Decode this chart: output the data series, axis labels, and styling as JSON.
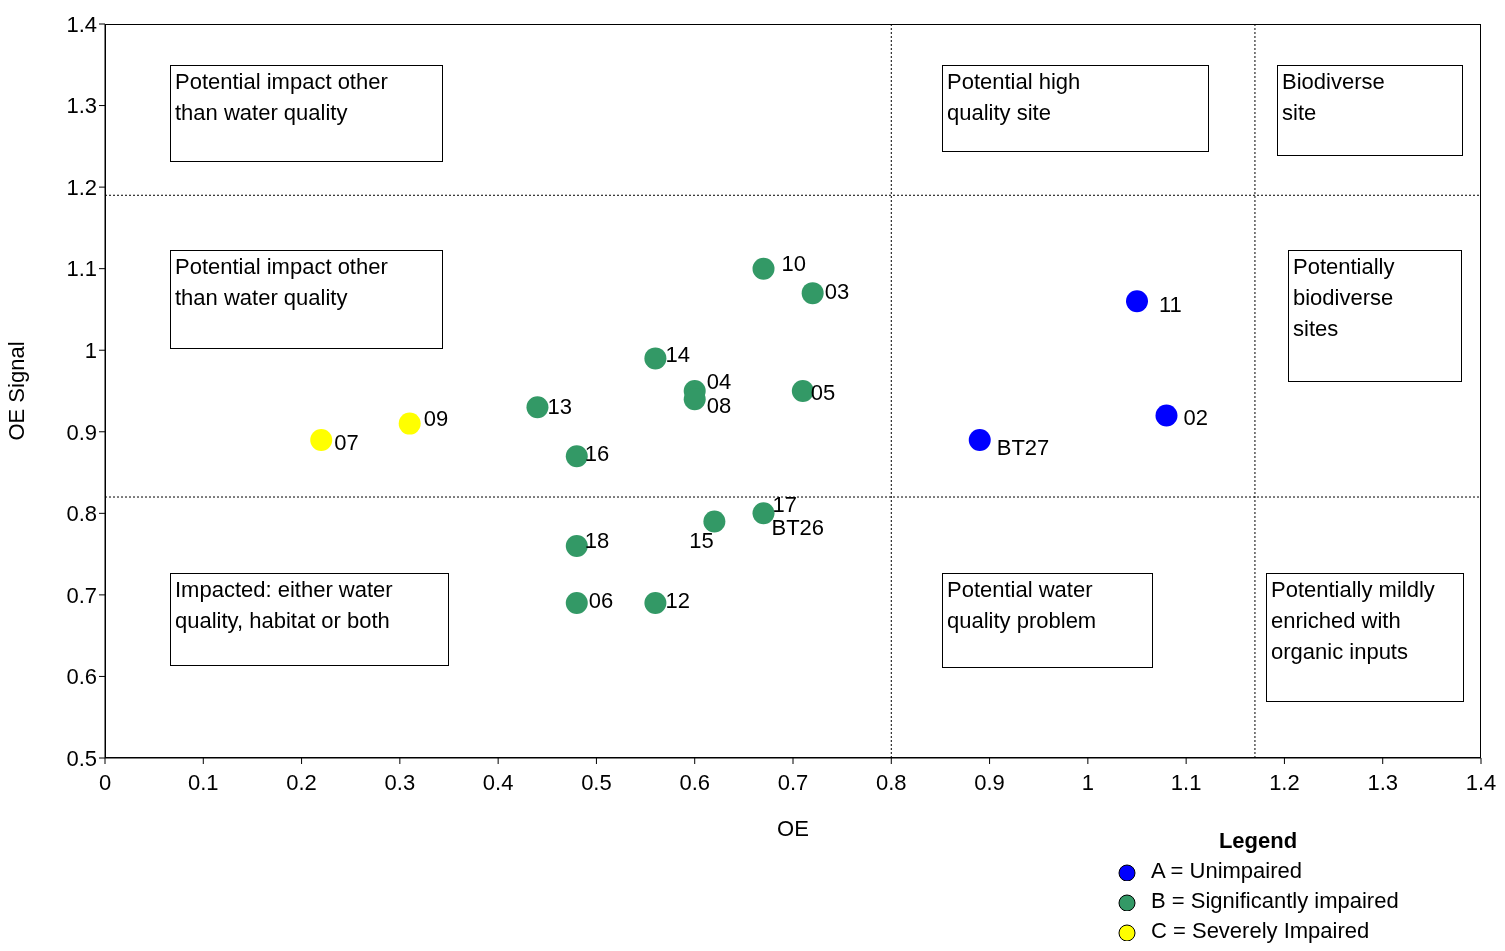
{
  "chart_data": {
    "type": "scatter",
    "xlabel": "OE",
    "ylabel": "OE Signal",
    "legend_title": "Legend",
    "legend": "bottom right",
    "marker": "circle",
    "grid": false,
    "xlim": [
      0,
      1.4
    ],
    "ylim": [
      0.5,
      1.4
    ],
    "xticks": [
      0,
      0.1,
      0.2,
      0.3,
      0.4,
      0.5,
      0.6,
      0.7,
      0.8,
      0.9,
      1,
      1.1,
      1.2,
      1.3,
      1.4
    ],
    "yticks": [
      0.5,
      0.6,
      0.7,
      0.8,
      0.9,
      1,
      1.1,
      1.2,
      1.3,
      1.4
    ],
    "series": [
      {
        "name": "A = Unimpaired",
        "color": "#0000ff",
        "x": [
          0.89,
          1.05,
          1.08
        ],
        "values": [
          0.89,
          1.06,
          0.92
        ]
      },
      {
        "name": "B = Significantly impaired",
        "color": "#339966",
        "x": [
          0.44,
          0.48,
          0.56,
          0.6,
          0.6,
          0.67,
          0.72,
          0.71,
          0.48,
          0.48,
          0.56,
          0.62,
          0.67
        ],
        "values": [
          0.93,
          0.87,
          0.99,
          0.95,
          0.94,
          1.1,
          1.07,
          0.95,
          0.76,
          0.69,
          0.69,
          0.79,
          0.8
        ]
      },
      {
        "name": "C = Severely Impaired",
        "color": "#ffff00",
        "x": [
          0.22,
          0.31
        ],
        "values": [
          0.89,
          0.91
        ]
      }
    ],
    "ref_lines": [
      {
        "axis": "x",
        "value": 0.8,
        "line_style": "dotted"
      },
      {
        "axis": "x",
        "value": 1.17,
        "line_style": "dotted"
      },
      {
        "axis": "y",
        "value": 1.19,
        "line_style": "dotted"
      },
      {
        "axis": "y",
        "value": 0.82,
        "line_style": "dotted"
      }
    ],
    "annotations": [
      {
        "text": "07",
        "x": 0.22,
        "y": 0.89
      },
      {
        "text": "09",
        "x": 0.31,
        "y": 0.91
      },
      {
        "text": "13",
        "x": 0.44,
        "y": 0.93
      },
      {
        "text": "16",
        "x": 0.48,
        "y": 0.87
      },
      {
        "text": "14",
        "x": 0.56,
        "y": 0.99
      },
      {
        "text": "04",
        "x": 0.6,
        "y": 0.95
      },
      {
        "text": "08",
        "x": 0.6,
        "y": 0.94
      },
      {
        "text": "10",
        "x": 0.67,
        "y": 1.1
      },
      {
        "text": "03",
        "x": 0.72,
        "y": 1.07
      },
      {
        "text": "05",
        "x": 0.71,
        "y": 0.95
      },
      {
        "text": "18",
        "x": 0.48,
        "y": 0.76
      },
      {
        "text": "06",
        "x": 0.48,
        "y": 0.69
      },
      {
        "text": "12",
        "x": 0.56,
        "y": 0.69
      },
      {
        "text": "15",
        "x": 0.62,
        "y": 0.79
      },
      {
        "text": "17",
        "x": 0.67,
        "y": 0.8
      },
      {
        "text": "BT26",
        "x": 0.67,
        "y": 0.8
      },
      {
        "text": "BT27",
        "x": 0.89,
        "y": 0.89
      },
      {
        "text": "11",
        "x": 1.05,
        "y": 1.06
      },
      {
        "text": "02",
        "x": 1.08,
        "y": 0.92
      },
      "Potential impact other\nthan water quality",
      "Potential high\nquality site",
      "Biodiverse\nsite",
      "Potential impact other\nthan water quality",
      "Potentially\nbiodiverse\nsites",
      "Impacted: either water\nquality, habitat or both",
      "Potential water\nquality problem",
      "Potentially mildly\nenriched with\norganic inputs"
    ]
  }
}
